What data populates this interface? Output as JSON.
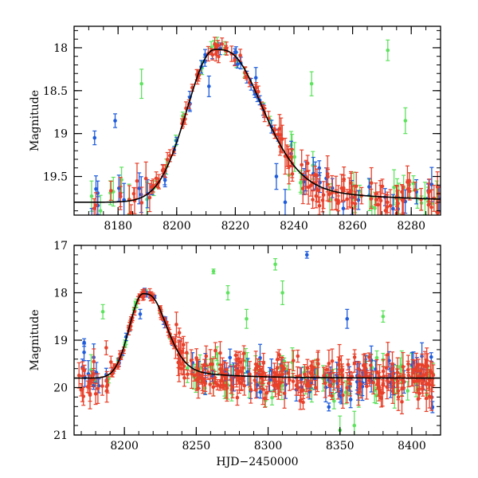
{
  "chart_data": [
    {
      "type": "scatter",
      "ylabel": "Magnitude",
      "xlabel": "",
      "xlim": [
        8165,
        8290
      ],
      "ylim": [
        19.95,
        17.75
      ],
      "y_inverted": true,
      "xticks": [
        {
          "value": 8180,
          "label": "8180"
        },
        {
          "value": 8200,
          "label": "8200"
        },
        {
          "value": 8220,
          "label": "8220"
        },
        {
          "value": 8240,
          "label": "8240"
        },
        {
          "value": 8260,
          "label": "8260"
        },
        {
          "value": 8280,
          "label": "8280"
        }
      ],
      "yticks": [
        {
          "value": 18,
          "label": "18"
        },
        {
          "value": 18.5,
          "label": "18.5"
        },
        {
          "value": 19,
          "label": "19"
        },
        {
          "value": 19.5,
          "label": "19.5"
        }
      ],
      "colors": {
        "red": "#e8402a",
        "green": "#5ee35e",
        "blue": "#1e5cdc",
        "fit": "#000000"
      },
      "fit_curve": {
        "peak_x": 8213,
        "peak_mag": 18.02,
        "baseline_mag": 19.8,
        "tau_rise": 9.5,
        "tau_decay": 14
      },
      "outliers": [
        {
          "band": "green",
          "x": 8188,
          "y": 18.42,
          "err": 0.17
        },
        {
          "band": "green",
          "x": 8272,
          "y": 18.03,
          "err": 0.12
        },
        {
          "band": "green",
          "x": 8278,
          "y": 18.85,
          "err": 0.15
        },
        {
          "band": "green",
          "x": 8246,
          "y": 18.42,
          "err": 0.14
        },
        {
          "band": "green",
          "x": 8174,
          "y": 19.9,
          "err": 0.18
        },
        {
          "band": "blue",
          "x": 8172,
          "y": 19.05,
          "err": 0.08
        },
        {
          "band": "blue",
          "x": 8179,
          "y": 18.85,
          "err": 0.08
        },
        {
          "band": "blue",
          "x": 8211,
          "y": 18.45,
          "err": 0.12
        },
        {
          "band": "blue",
          "x": 8227,
          "y": 18.35,
          "err": 0.12
        },
        {
          "band": "blue",
          "x": 8234,
          "y": 19.5,
          "err": 0.15
        },
        {
          "band": "blue",
          "x": 8237,
          "y": 19.8,
          "err": 0.15
        }
      ]
    },
    {
      "type": "scatter",
      "ylabel": "Magnitude",
      "xlabel": "HJD−2450000",
      "xlim": [
        8165,
        8420
      ],
      "ylim": [
        21,
        17
      ],
      "y_inverted": true,
      "xticks": [
        {
          "value": 8200,
          "label": "8200"
        },
        {
          "value": 8250,
          "label": "8250"
        },
        {
          "value": 8300,
          "label": "8300"
        },
        {
          "value": 8350,
          "label": "8350"
        },
        {
          "value": 8400,
          "label": "8400"
        }
      ],
      "yticks": [
        {
          "value": 17,
          "label": "17"
        },
        {
          "value": 18,
          "label": "18"
        },
        {
          "value": 19,
          "label": "19"
        },
        {
          "value": 20,
          "label": "20"
        },
        {
          "value": 21,
          "label": "21"
        }
      ],
      "colors": {
        "red": "#e8402a",
        "green": "#5ee35e",
        "blue": "#1e5cdc",
        "fit": "#000000"
      },
      "fit_curve": {
        "peak_x": 8213,
        "peak_mag": 18.02,
        "baseline_mag": 19.8,
        "tau_rise": 9.5,
        "tau_decay": 14
      },
      "outliers": [
        {
          "band": "blue",
          "x": 8327,
          "y": 17.2,
          "err": 0.07
        },
        {
          "band": "green",
          "x": 8262,
          "y": 17.55,
          "err": 0.05
        },
        {
          "band": "green",
          "x": 8305,
          "y": 17.4,
          "err": 0.12
        },
        {
          "band": "green",
          "x": 8272,
          "y": 18.0,
          "err": 0.15
        },
        {
          "band": "green",
          "x": 8310,
          "y": 18.0,
          "err": 0.25
        },
        {
          "band": "green",
          "x": 8285,
          "y": 18.55,
          "err": 0.2
        },
        {
          "band": "green",
          "x": 8380,
          "y": 18.5,
          "err": 0.12
        },
        {
          "band": "blue",
          "x": 8355,
          "y": 18.55,
          "err": 0.2
        },
        {
          "band": "green",
          "x": 8185,
          "y": 18.4,
          "err": 0.15
        },
        {
          "band": "blue",
          "x": 8172,
          "y": 19.05,
          "err": 0.08
        },
        {
          "band": "blue",
          "x": 8211,
          "y": 18.45,
          "err": 0.1
        },
        {
          "band": "green",
          "x": 8360,
          "y": 20.8,
          "err": 0.3
        },
        {
          "band": "green",
          "x": 8350,
          "y": 20.9,
          "err": 0.3
        }
      ]
    }
  ]
}
